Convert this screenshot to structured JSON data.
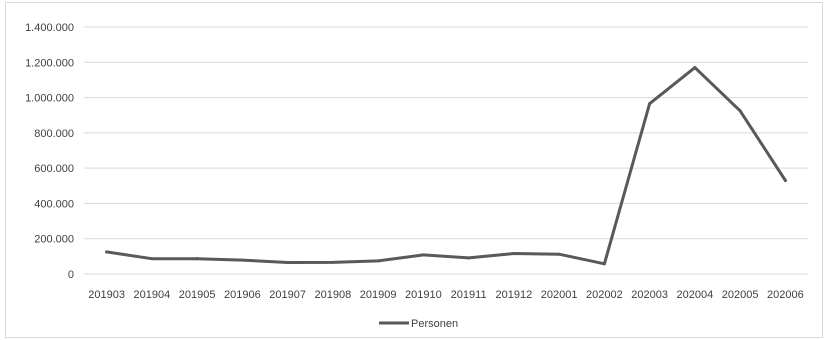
{
  "chart_data": {
    "type": "line",
    "title": "",
    "xlabel": "",
    "ylabel": "",
    "categories": [
      "201903",
      "201904",
      "201905",
      "201906",
      "201907",
      "201908",
      "201909",
      "201910",
      "201911",
      "201912",
      "202001",
      "202002",
      "202003",
      "202004",
      "202005",
      "202006"
    ],
    "series": [
      {
        "name": "Personen",
        "color": "#595959",
        "values": [
          125000,
          87000,
          87000,
          79000,
          65000,
          66000,
          74000,
          108000,
          91000,
          116000,
          112000,
          58000,
          965000,
          1170000,
          925000,
          530000
        ]
      }
    ],
    "ylim": [
      0,
      1400000
    ],
    "yticks": [
      {
        "value": 0,
        "label": "0"
      },
      {
        "value": 200000,
        "label": "200.000"
      },
      {
        "value": 400000,
        "label": "400.000"
      },
      {
        "value": 600000,
        "label": "600.000"
      },
      {
        "value": 800000,
        "label": "800.000"
      },
      {
        "value": 1000000,
        "label": "1.000.000"
      },
      {
        "value": 1200000,
        "label": "1.200.000"
      },
      {
        "value": 1400000,
        "label": "1.400.000"
      }
    ],
    "grid": "horizontal",
    "legend_position": "bottom"
  }
}
